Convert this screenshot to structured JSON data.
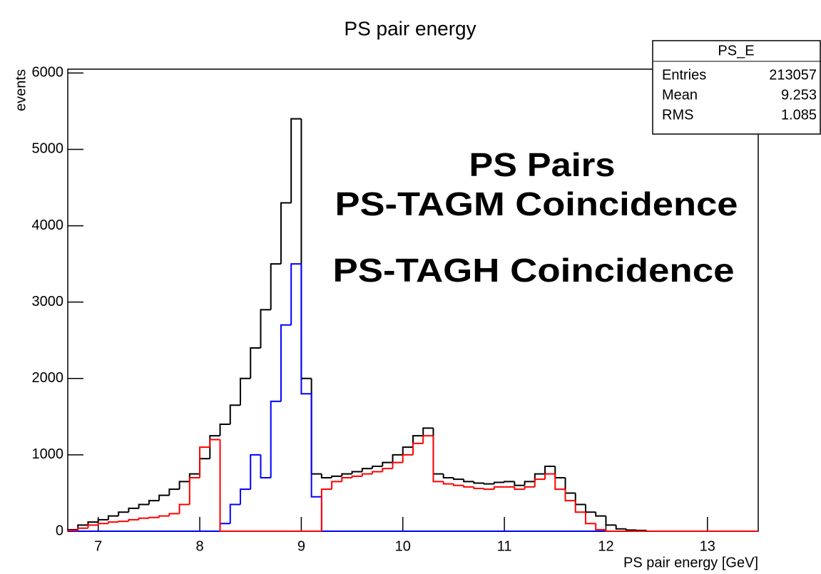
{
  "chart_data": {
    "type": "histogram",
    "title": "PS pair energy",
    "x_label": "PS pair energy [GeV]",
    "y_label": "events",
    "bins": [
      6.7,
      6.8,
      6.9,
      7.0,
      7.1,
      7.2,
      7.3,
      7.4,
      7.5,
      7.6,
      7.7,
      7.8,
      7.9,
      8.0,
      8.1,
      8.2,
      8.3,
      8.4,
      8.5,
      8.6,
      8.7,
      8.8,
      8.9,
      9.0,
      9.1,
      9.2,
      9.3,
      9.4,
      9.5,
      9.6,
      9.7,
      9.8,
      9.9,
      10.0,
      10.1,
      10.2,
      10.3,
      10.4,
      10.5,
      10.6,
      10.7,
      10.8,
      10.9,
      11.0,
      11.1,
      11.2,
      11.3,
      11.4,
      11.5,
      11.6,
      11.7,
      11.8,
      11.9,
      12.0,
      12.1,
      12.2,
      12.3,
      12.4,
      12.5,
      12.6,
      12.7,
      12.8,
      12.9,
      13.0,
      13.1,
      13.2,
      13.3,
      13.4,
      13.5
    ],
    "series": [
      {
        "name": "PS Pairs",
        "color": "#000000",
        "values": [
          20,
          80,
          120,
          150,
          200,
          250,
          300,
          350,
          400,
          470,
          550,
          650,
          750,
          950,
          1250,
          1400,
          1650,
          2000,
          2400,
          2900,
          3500,
          4300,
          5400,
          2000,
          750,
          700,
          720,
          750,
          780,
          820,
          850,
          900,
          1000,
          1100,
          1250,
          1350,
          750,
          700,
          680,
          650,
          630,
          620,
          640,
          650,
          600,
          650,
          750,
          850,
          700,
          500,
          350,
          250,
          200,
          80,
          30,
          15,
          10,
          0,
          0,
          0,
          0,
          0,
          0,
          0,
          0,
          0,
          0,
          0
        ]
      },
      {
        "name": "PS-TAGM Coincidence",
        "color": "#0000ff",
        "values": [
          0,
          0,
          0,
          0,
          0,
          0,
          0,
          0,
          0,
          0,
          0,
          0,
          0,
          0,
          0,
          100,
          350,
          550,
          1000,
          700,
          1700,
          2700,
          3500,
          1800,
          450,
          0,
          0,
          0,
          0,
          0,
          0,
          0,
          0,
          0,
          0,
          0,
          0,
          0,
          0,
          0,
          0,
          0,
          0,
          0,
          0,
          0,
          0,
          0,
          0,
          0,
          0,
          0,
          0,
          0,
          0,
          0,
          0,
          0,
          0,
          0,
          0,
          0,
          0,
          0,
          0,
          0,
          0,
          0
        ]
      },
      {
        "name": "PS-TAGH Coincidence",
        "color": "#ff0000",
        "values": [
          10,
          40,
          80,
          100,
          120,
          130,
          150,
          170,
          180,
          200,
          230,
          350,
          700,
          1100,
          1200,
          0,
          0,
          0,
          0,
          0,
          0,
          0,
          0,
          0,
          0,
          550,
          650,
          700,
          720,
          750,
          780,
          820,
          900,
          1000,
          1150,
          1250,
          650,
          620,
          600,
          580,
          560,
          550,
          580,
          580,
          550,
          580,
          680,
          750,
          550,
          400,
          250,
          100,
          20,
          0,
          0,
          0,
          0,
          0,
          0,
          0,
          0,
          0,
          0,
          0,
          0,
          0,
          0,
          0
        ]
      }
    ],
    "annotation_colors": [
      "#000000",
      "#1a5fd6",
      "#e0341a"
    ],
    "xlim": [
      6.7,
      13.5
    ],
    "xticks": [
      7,
      8,
      9,
      10,
      11,
      12,
      13
    ],
    "ylim": [
      0,
      6050
    ],
    "yticks": [
      0,
      1000,
      2000,
      3000,
      4000,
      5000,
      6000
    ],
    "stats": {
      "title": "PS_E",
      "rows": [
        {
          "label": "Entries",
          "value": 213057
        },
        {
          "label": "Mean",
          "value": 9.253
        },
        {
          "label": "RMS",
          "value": 1.085
        }
      ]
    }
  }
}
